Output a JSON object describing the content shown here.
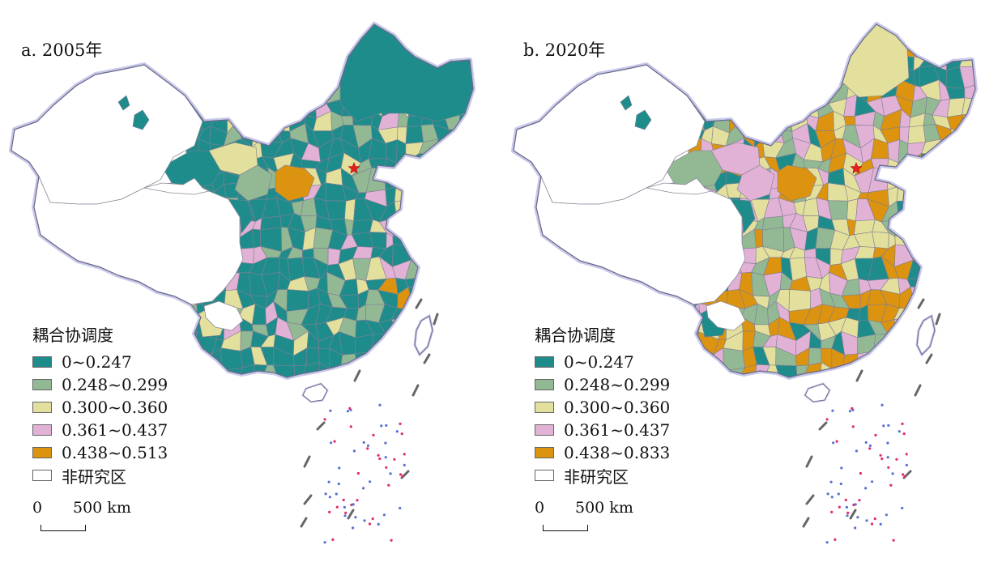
{
  "colors": {
    "c1": "#1f8c8c",
    "c2": "#93b894",
    "c3": "#e3df9c",
    "c4": "#e2b2d6",
    "c5": "#dc930f",
    "c0": "#ffffff",
    "border": "#6a6a8c",
    "halo": "#c8c8ea",
    "capital": "#e52020"
  },
  "panels": [
    {
      "title": "a. 2005年",
      "legend": {
        "title": "耦合协调度",
        "items": [
          {
            "label": "0~0.247",
            "color": "#1f8c8c"
          },
          {
            "label": "0.248~0.299",
            "color": "#93b894"
          },
          {
            "label": "0.300~0.360",
            "color": "#e3df9c"
          },
          {
            "label": "0.361~0.437",
            "color": "#e2b2d6"
          },
          {
            "label": "0.438~0.513",
            "color": "#dc930f"
          },
          {
            "label": "非研究区",
            "color": "#ffffff"
          }
        ]
      },
      "scale": {
        "zero": "0",
        "length": "500 km"
      }
    },
    {
      "title": "b. 2020年",
      "legend": {
        "title": "耦合协调度",
        "items": [
          {
            "label": "0~0.247",
            "color": "#1f8c8c"
          },
          {
            "label": "0.248~0.299",
            "color": "#93b894"
          },
          {
            "label": "0.300~0.360",
            "color": "#e3df9c"
          },
          {
            "label": "0.361~0.437",
            "color": "#e2b2d6"
          },
          {
            "label": "0.438~0.833",
            "color": "#dc930f"
          },
          {
            "label": "非研究区",
            "color": "#ffffff"
          }
        ]
      },
      "scale": {
        "zero": "0",
        "length": "500 km"
      }
    }
  ]
}
